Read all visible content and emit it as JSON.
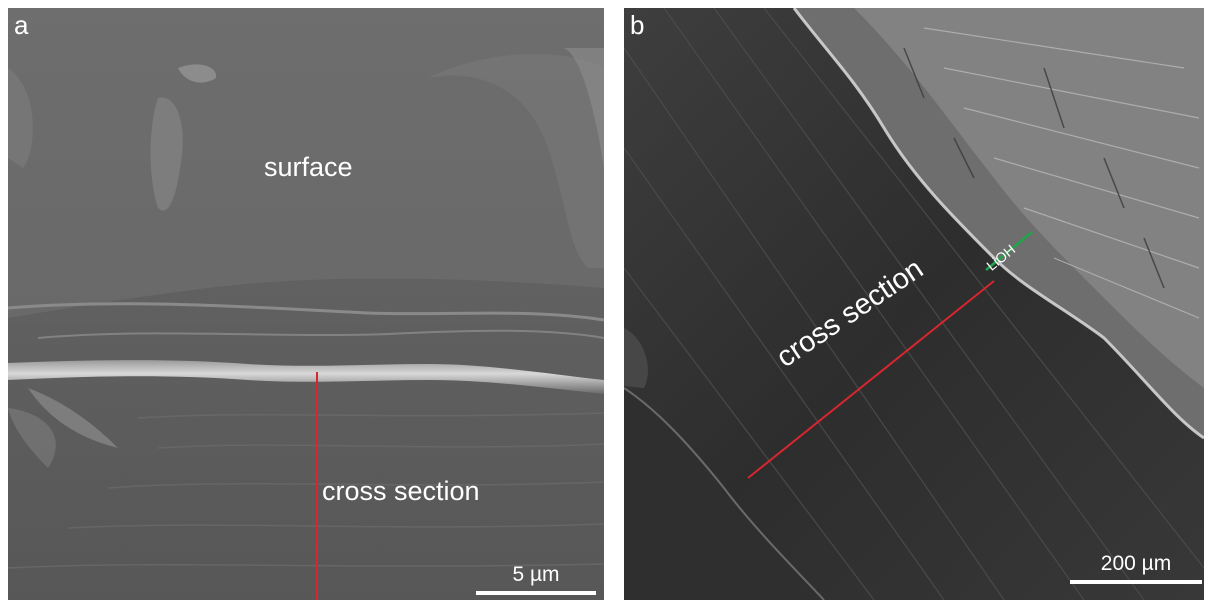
{
  "panels": [
    {
      "letter": "a",
      "labels": {
        "surface": "surface",
        "cross_section": "cross section"
      },
      "scalebar": "5 µm"
    },
    {
      "letter": "b",
      "labels": {
        "cross_section": "cross section",
        "layer": "LiOH"
      },
      "scalebar": "200 µm"
    }
  ],
  "colors": {
    "measure_line_red": "#d7262d",
    "measure_line_green": "#1fa54a",
    "background": "#ffffff"
  }
}
